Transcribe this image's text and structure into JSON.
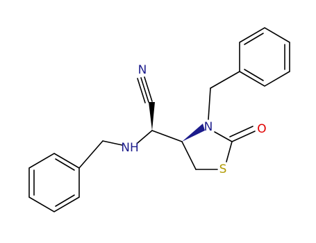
{
  "atoms": [
    {
      "label": "N"
    },
    {
      "label": "NH"
    },
    {
      "label": "N"
    },
    {
      "label": "O"
    },
    {
      "label": "S"
    }
  ]
}
